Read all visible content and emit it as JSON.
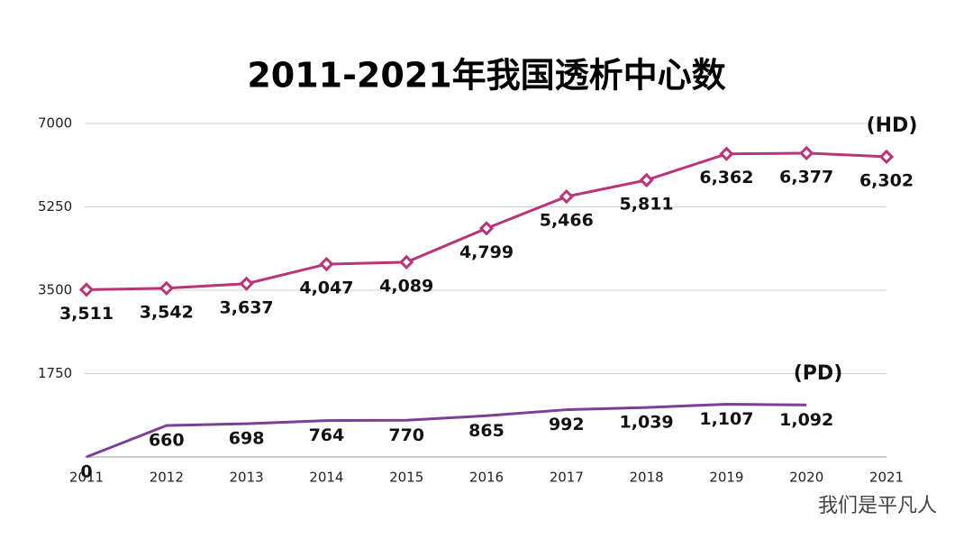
{
  "chart_data": {
    "type": "line",
    "title": "2011-2021年我国透析中心数",
    "categories": [
      "2011",
      "2012",
      "2013",
      "2014",
      "2015",
      "2016",
      "2017",
      "2018",
      "2019",
      "2020",
      "2021"
    ],
    "series": [
      {
        "name": "(HD)",
        "color": "#b8357a",
        "values": [
          3511,
          3542,
          3637,
          4047,
          4089,
          4799,
          5466,
          5811,
          6362,
          6377,
          6302
        ],
        "value_labels": [
          "3,511",
          "3,542",
          "3,637",
          "4,047",
          "4,089",
          "4,799",
          "5,466",
          "5,811",
          "6,362",
          "6,377",
          "6,302"
        ]
      },
      {
        "name": "(PD)",
        "color": "#7b3f98",
        "values": [
          0,
          660,
          698,
          764,
          770,
          865,
          992,
          1039,
          1107,
          1092,
          null
        ],
        "value_labels": [
          "0",
          "660",
          "698",
          "764",
          "770",
          "865",
          "992",
          "1,039",
          "1,107",
          "1,092",
          null
        ]
      }
    ],
    "ylim": [
      0,
      7000
    ],
    "yticks": [
      1750,
      3500,
      5250,
      7000
    ],
    "grid": true,
    "watermark": "我们是平凡人"
  }
}
